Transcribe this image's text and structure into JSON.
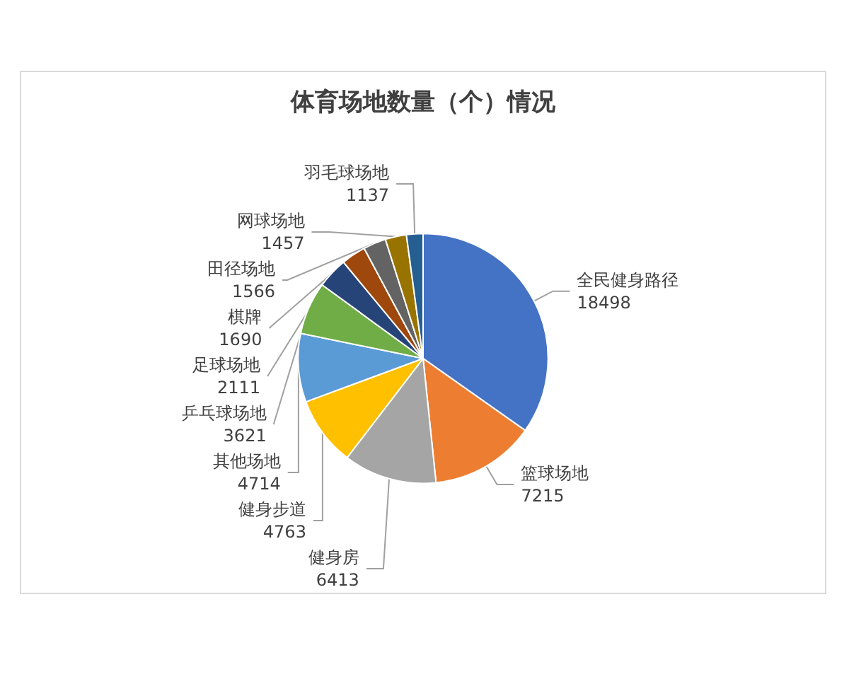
{
  "chart_data": {
    "type": "pie",
    "title": "体育场地数量（个）情况",
    "categories": [
      "全民健身路径",
      "篮球场地",
      "健身房",
      "健身步道",
      "其他场地",
      "乒乓球场地",
      "足球场地",
      "棋牌",
      "田径场地",
      "网球场地",
      "羽毛球场地"
    ],
    "values": [
      18498,
      7215,
      6413,
      4763,
      4714,
      3621,
      2111,
      1690,
      1566,
      1457,
      1137
    ],
    "colors": [
      "#4472c4",
      "#ed7d31",
      "#a5a5a5",
      "#ffc000",
      "#5b9bd5",
      "#70ad47",
      "#264478",
      "#9e480e",
      "#636363",
      "#997300",
      "#255e91"
    ],
    "data_labels": true,
    "legend": false
  }
}
